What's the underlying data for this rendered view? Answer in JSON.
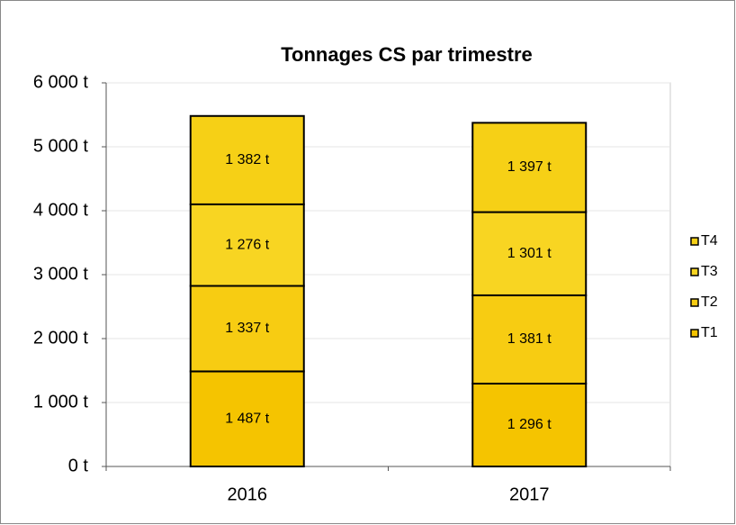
{
  "chart_data": {
    "type": "stacked_bar",
    "title": "Tonnages CS par trimestre",
    "categories": [
      "2016",
      "2017"
    ],
    "series": [
      {
        "name": "T1",
        "color": "#f5c400",
        "values": [
          1487,
          1296
        ],
        "value_labels": [
          "1 487 t",
          "1 296 t"
        ]
      },
      {
        "name": "T2",
        "color": "#f7cc12",
        "values": [
          1337,
          1381
        ],
        "value_labels": [
          "1 337 t",
          "1 381 t"
        ]
      },
      {
        "name": "T3",
        "color": "#f8d522",
        "values": [
          1276,
          1301
        ],
        "value_labels": [
          "1 276 t",
          "1 301 t"
        ]
      },
      {
        "name": "T4",
        "color": "#f6d016",
        "values": [
          1382,
          1397
        ],
        "value_labels": [
          "1 382 t",
          "1 397 t"
        ]
      }
    ],
    "ylim": [
      0,
      6000
    ],
    "yticks": [
      {
        "value": 0,
        "label": "0 t"
      },
      {
        "value": 1000,
        "label": "1 000 t"
      },
      {
        "value": 2000,
        "label": "2 000 t"
      },
      {
        "value": 3000,
        "label": "3 000 t"
      },
      {
        "value": 4000,
        "label": "4 000 t"
      },
      {
        "value": 5000,
        "label": "5 000 t"
      },
      {
        "value": 6000,
        "label": "6 000 t"
      }
    ],
    "grid": true,
    "legend": "right"
  }
}
